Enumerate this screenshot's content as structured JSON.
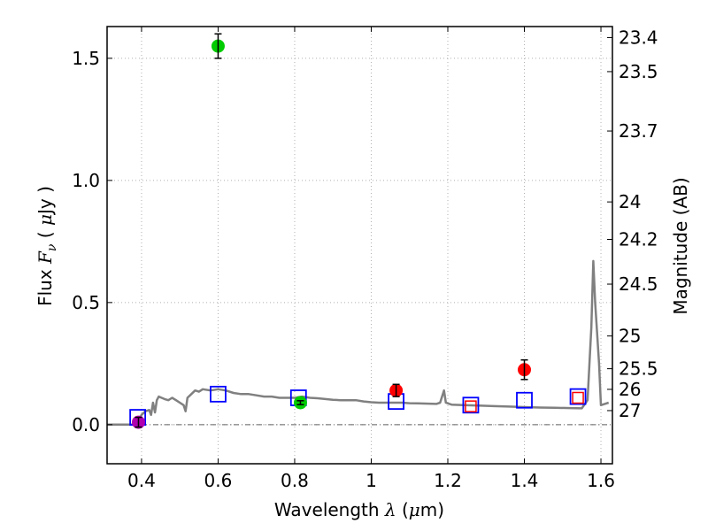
{
  "chart_data": {
    "type": "scatter",
    "xlabel": {
      "prefix": "Wavelength  ",
      "symbol": "λ",
      "unit_open": " (",
      "unit_mu": "μ",
      "unit_close": "m)"
    },
    "ylabel": {
      "prefix": "Flux  ",
      "symbol": "F",
      "sub": "ν",
      "unit_open": "  ( ",
      "unit_mu": "μ",
      "unit_close": "Jy )"
    },
    "y2label": "Magnitude (AB)",
    "xlim": [
      0.31,
      1.63
    ],
    "ylim": [
      -0.16,
      1.63
    ],
    "grid": true,
    "x_ticks": [
      {
        "value": 0.4,
        "label": "0.4"
      },
      {
        "value": 0.6,
        "label": "0.6"
      },
      {
        "value": 0.8,
        "label": "0.8"
      },
      {
        "value": 1.0,
        "label": "1"
      },
      {
        "value": 1.2,
        "label": "1.2"
      },
      {
        "value": 1.4,
        "label": "1.4"
      },
      {
        "value": 1.6,
        "label": "1.6"
      }
    ],
    "y_ticks": [
      {
        "value": 0.0,
        "label": "0.0"
      },
      {
        "value": 0.5,
        "label": "0.5"
      },
      {
        "value": 1.0,
        "label": "1.0"
      },
      {
        "value": 1.5,
        "label": "1.5"
      }
    ],
    "mag_ticks": [
      {
        "label": "23.4",
        "mag": 23.4
      },
      {
        "label": "23.5",
        "mag": 23.5
      },
      {
        "label": "23.7",
        "mag": 23.7
      },
      {
        "label": "24",
        "mag": 24.0
      },
      {
        "label": "24.2",
        "mag": 24.2
      },
      {
        "label": "24.5",
        "mag": 24.5
      },
      {
        "label": "25",
        "mag": 25.0
      },
      {
        "label": "25.5",
        "mag": 25.5
      },
      {
        "label": "26",
        "mag": 26.0
      },
      {
        "label": "27",
        "mag": 27.0
      }
    ],
    "colors": {
      "model": "#808080",
      "model_points": "#0000ff",
      "red_boxes": "#ff0000",
      "green": "#00cc00",
      "red": "#ff0000",
      "magenta": "#b000b0",
      "grid": "#b0b0b0",
      "zero_line": "#606060"
    },
    "model_spectrum": [
      [
        0.31,
        0.0
      ],
      [
        0.37,
        0.0
      ],
      [
        0.385,
        0.0
      ],
      [
        0.39,
        0.01
      ],
      [
        0.395,
        0.025
      ],
      [
        0.4,
        0.04
      ],
      [
        0.41,
        0.055
      ],
      [
        0.42,
        0.06
      ],
      [
        0.425,
        0.04
      ],
      [
        0.43,
        0.09
      ],
      [
        0.435,
        0.05
      ],
      [
        0.44,
        0.1
      ],
      [
        0.445,
        0.115
      ],
      [
        0.46,
        0.105
      ],
      [
        0.47,
        0.1
      ],
      [
        0.48,
        0.11
      ],
      [
        0.49,
        0.1
      ],
      [
        0.5,
        0.09
      ],
      [
        0.51,
        0.08
      ],
      [
        0.515,
        0.055
      ],
      [
        0.52,
        0.11
      ],
      [
        0.53,
        0.125
      ],
      [
        0.54,
        0.14
      ],
      [
        0.55,
        0.135
      ],
      [
        0.56,
        0.145
      ],
      [
        0.58,
        0.14
      ],
      [
        0.6,
        0.145
      ],
      [
        0.62,
        0.14
      ],
      [
        0.64,
        0.13
      ],
      [
        0.66,
        0.125
      ],
      [
        0.68,
        0.125
      ],
      [
        0.7,
        0.12
      ],
      [
        0.72,
        0.115
      ],
      [
        0.74,
        0.115
      ],
      [
        0.76,
        0.11
      ],
      [
        0.78,
        0.11
      ],
      [
        0.8,
        0.11
      ],
      [
        0.82,
        0.115
      ],
      [
        0.84,
        0.11
      ],
      [
        0.86,
        0.108
      ],
      [
        0.88,
        0.105
      ],
      [
        0.9,
        0.102
      ],
      [
        0.92,
        0.1
      ],
      [
        0.94,
        0.1
      ],
      [
        0.96,
        0.1
      ],
      [
        0.98,
        0.095
      ],
      [
        1.0,
        0.092
      ],
      [
        1.02,
        0.09
      ],
      [
        1.04,
        0.09
      ],
      [
        1.06,
        0.09
      ],
      [
        1.08,
        0.09
      ],
      [
        1.1,
        0.088
      ],
      [
        1.12,
        0.087
      ],
      [
        1.15,
        0.086
      ],
      [
        1.17,
        0.085
      ],
      [
        1.18,
        0.09
      ],
      [
        1.19,
        0.14
      ],
      [
        1.195,
        0.09
      ],
      [
        1.21,
        0.082
      ],
      [
        1.24,
        0.08
      ],
      [
        1.28,
        0.078
      ],
      [
        1.32,
        0.076
      ],
      [
        1.36,
        0.074
      ],
      [
        1.4,
        0.072
      ],
      [
        1.44,
        0.07
      ],
      [
        1.48,
        0.069
      ],
      [
        1.52,
        0.068
      ],
      [
        1.55,
        0.067
      ],
      [
        1.565,
        0.1
      ],
      [
        1.575,
        0.4
      ],
      [
        1.58,
        0.67
      ],
      [
        1.585,
        0.5
      ],
      [
        1.595,
        0.25
      ],
      [
        1.6,
        0.08
      ],
      [
        1.61,
        0.085
      ],
      [
        1.62,
        0.09
      ]
    ],
    "model_points": [
      {
        "x": 0.39,
        "y": 0.03
      },
      {
        "x": 0.6,
        "y": 0.125
      },
      {
        "x": 0.81,
        "y": 0.11
      },
      {
        "x": 1.065,
        "y": 0.095
      },
      {
        "x": 1.26,
        "y": 0.08
      },
      {
        "x": 1.4,
        "y": 0.1
      },
      {
        "x": 1.54,
        "y": 0.115
      }
    ],
    "upper_limits": [
      {
        "x": 1.26,
        "y": 0.075
      },
      {
        "x": 1.54,
        "y": 0.11
      }
    ],
    "detections": [
      {
        "x": 0.392,
        "y": 0.01,
        "err": 0.02,
        "color": "magenta"
      },
      {
        "x": 0.6,
        "y": 1.55,
        "err": 0.05,
        "color": "green"
      },
      {
        "x": 0.815,
        "y": 0.09,
        "err": 0.008,
        "color": "green"
      },
      {
        "x": 1.065,
        "y": 0.14,
        "err": 0.025,
        "color": "red"
      },
      {
        "x": 1.4,
        "y": 0.225,
        "err": 0.04,
        "color": "red"
      }
    ]
  }
}
